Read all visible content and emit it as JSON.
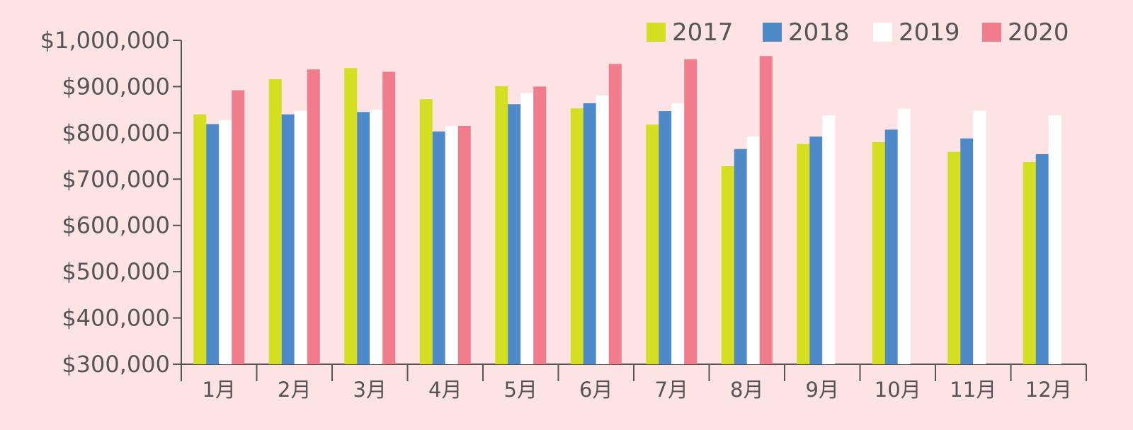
{
  "chart_data": {
    "type": "bar",
    "categories": [
      "1月",
      "2月",
      "3月",
      "4月",
      "5月",
      "6月",
      "7月",
      "8月",
      "9月",
      "10月",
      "11月",
      "12月"
    ],
    "series": [
      {
        "name": "2017",
        "color": "#d4df22",
        "values": [
          840000,
          916000,
          940000,
          873000,
          901000,
          853000,
          818000,
          728000,
          776000,
          780000,
          759000,
          737000
        ]
      },
      {
        "name": "2018",
        "color": "#4f8ac8",
        "values": [
          819000,
          840000,
          845000,
          803000,
          862000,
          864000,
          847000,
          765000,
          792000,
          807000,
          788000,
          754000
        ]
      },
      {
        "name": "2019",
        "color": "#ffffff",
        "values": [
          828000,
          848000,
          850000,
          815000,
          886000,
          881000,
          864000,
          792000,
          838000,
          852000,
          848000,
          838000
        ]
      },
      {
        "name": "2020",
        "color": "#f07c8c",
        "values": [
          892000,
          937000,
          932000,
          815000,
          900000,
          949000,
          959000,
          966000,
          null,
          null,
          null,
          null
        ]
      }
    ],
    "y_ticks": [
      "$300,000",
      "$400,000",
      "$500,000",
      "$600,000",
      "$700,000",
      "$800,000",
      "$900,000",
      "$1,000,000"
    ],
    "ylim": [
      300000,
      1000000
    ],
    "y_step": 100000,
    "grid": false,
    "legend_position": "top-right",
    "background_color": "#fde3e4",
    "axis_color": "#555555"
  }
}
